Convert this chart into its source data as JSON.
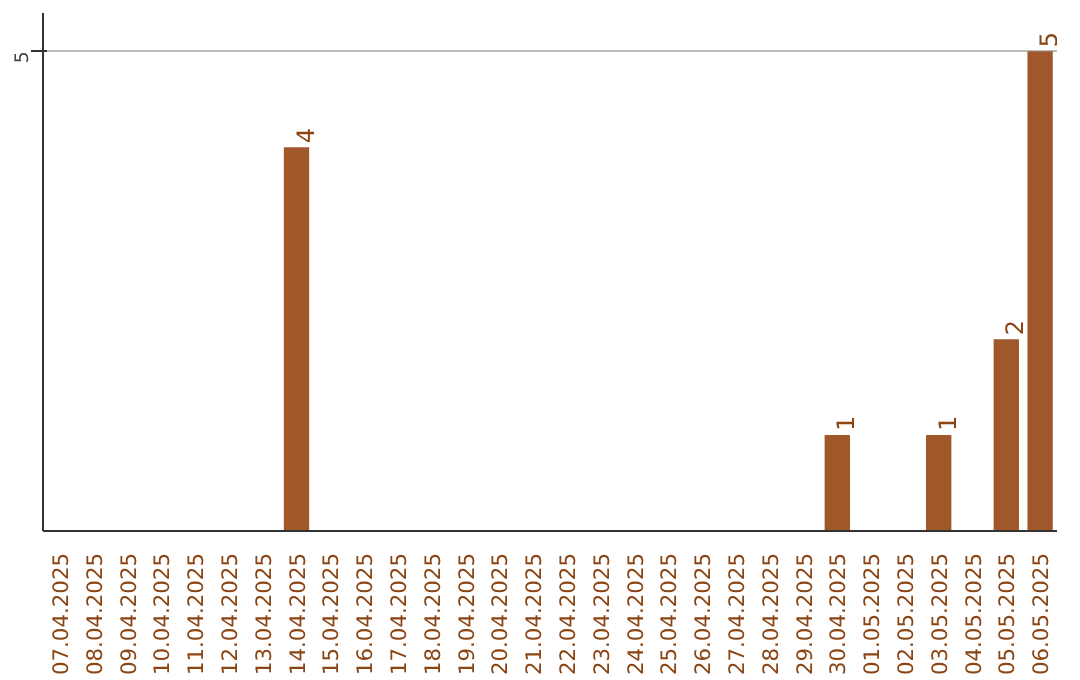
{
  "chart_data": {
    "type": "bar",
    "categories": [
      "07.04.2025",
      "08.04.2025",
      "09.04.2025",
      "10.04.2025",
      "11.04.2025",
      "12.04.2025",
      "13.04.2025",
      "14.04.2025",
      "15.04.2025",
      "16.04.2025",
      "17.04.2025",
      "18.04.2025",
      "19.04.2025",
      "20.04.2025",
      "21.04.2025",
      "22.04.2025",
      "23.04.2025",
      "24.04.2025",
      "25.04.2025",
      "26.04.2025",
      "27.04.2025",
      "28.04.2025",
      "29.04.2025",
      "30.04.2025",
      "01.05.2025",
      "02.05.2025",
      "03.05.2025",
      "04.05.2025",
      "05.05.2025",
      "06.05.2025"
    ],
    "values": [
      0,
      0,
      0,
      0,
      0,
      0,
      0,
      4,
      0,
      0,
      0,
      0,
      0,
      0,
      0,
      0,
      0,
      0,
      0,
      0,
      0,
      0,
      0,
      1,
      0,
      0,
      1,
      0,
      2,
      5
    ],
    "value_labels": [
      null,
      null,
      null,
      null,
      null,
      null,
      null,
      "4",
      null,
      null,
      null,
      null,
      null,
      null,
      null,
      null,
      null,
      null,
      null,
      null,
      null,
      null,
      null,
      "1",
      null,
      null,
      "1",
      null,
      "2",
      "5"
    ],
    "color": "#a0582a",
    "ylim": [
      0,
      5.4
    ],
    "yticks": [
      5
    ],
    "grid": "y"
  }
}
